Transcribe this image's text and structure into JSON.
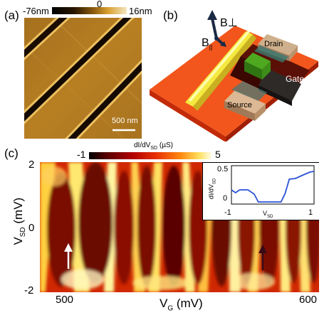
{
  "panel_a": {
    "label": "(a)",
    "scale_min": "-76nm",
    "scale_mid": "0",
    "scale_max": "16nm",
    "scalebar": "500 nm"
  },
  "panel_b": {
    "label": "(b)",
    "b_perp": "B⊥",
    "b_par": "B",
    "b_par_sub": "||",
    "drain": "Drain",
    "gate": "Gate",
    "source": "Source"
  },
  "panel_c": {
    "label": "(c)",
    "colorbar_min": "-1",
    "colorbar_max": "5",
    "colorbar_label_main": "dI/dV",
    "colorbar_label_sub": "SD",
    "colorbar_label_unit": " (µS)",
    "ylabel_main": "V",
    "ylabel_sub": "SD",
    "ylabel_unit": " (mV)",
    "xlabel_main": "V",
    "xlabel_sub": "G",
    "xlabel_unit": " (mV)",
    "yticks": [
      "2",
      "0",
      "-2"
    ],
    "xticks": [
      "500",
      "600"
    ],
    "inset": {
      "ylabel_main": "dI/dV",
      "ylabel_sub": "SD",
      "xlabel_main": "V",
      "xlabel_sub": "SD",
      "yticks": [
        "0.5",
        "0"
      ],
      "xticks": [
        "-1",
        "1"
      ]
    }
  },
  "chart_data": {
    "type": "line",
    "x": [
      -1.0,
      -0.9,
      -0.8,
      -0.6,
      -0.45,
      -0.35,
      -0.25,
      0.0,
      0.2,
      0.3,
      0.4,
      0.55,
      0.7,
      0.9,
      1.0
    ],
    "y": [
      0.2,
      0.16,
      0.2,
      0.2,
      0.14,
      0.03,
      0.03,
      0.03,
      0.03,
      0.15,
      0.35,
      0.36,
      0.4,
      0.45,
      0.46
    ],
    "xlabel": "VSD",
    "ylabel": "dI/dVSD",
    "xlim": [
      -1,
      1
    ],
    "ylim": [
      0,
      0.5
    ],
    "color": "#2a52d8"
  }
}
